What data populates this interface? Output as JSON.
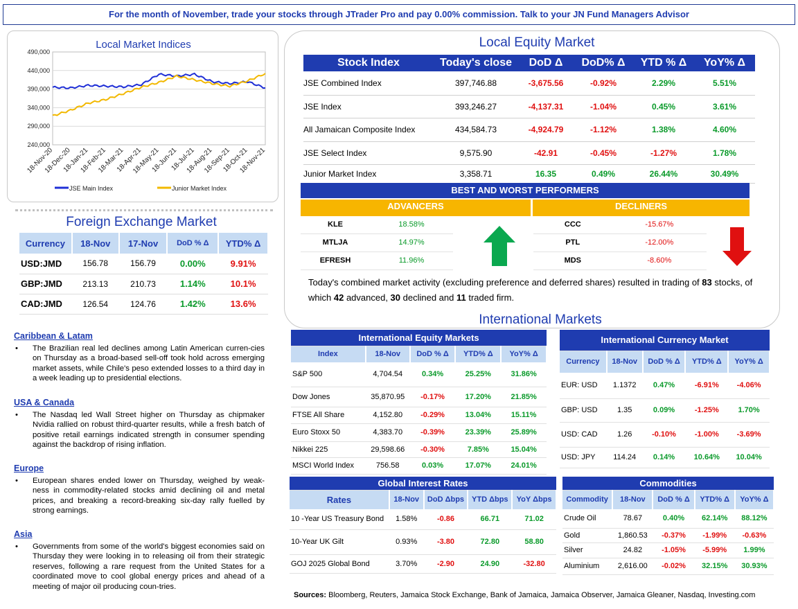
{
  "banner": "For the month of November, trade your stocks through JTrader Pro and pay 0.00% commission. Talk to your JN Fund Managers Advisor",
  "chart_data": {
    "type": "line",
    "title": "Local Market Indices",
    "xlabel": "",
    "ylabel": "",
    "ylim": [
      240000,
      490000
    ],
    "yticks": [
      "490,000",
      "440,000",
      "390,000",
      "340,000",
      "290,000",
      "240,000"
    ],
    "x": [
      "18-Nov-20",
      "18-Dec-20",
      "18-Jan-21",
      "18-Feb-21",
      "18-Mar-21",
      "18-Apr-21",
      "18-May-21",
      "18-Jun-21",
      "18-Jul-21",
      "18-Aug-21",
      "18-Sep-21",
      "18-Oct-21",
      "18-Nov-21"
    ],
    "series": [
      {
        "name": "JSE Main Index",
        "color": "#1f2fd6",
        "values": [
          395000,
          393000,
          400000,
          398000,
          396000,
          402000,
          430000,
          425000,
          430000,
          410000,
          405000,
          410000,
          393000
        ]
      },
      {
        "name": "Junior Market Index",
        "color": "#f2b800",
        "values": [
          318000,
          333000,
          352000,
          362000,
          378000,
          395000,
          408000,
          425000,
          415000,
          405000,
          398000,
          412000,
          432000
        ]
      }
    ],
    "legend": "bottom"
  },
  "fx": {
    "title": "Foreign Exchange Market",
    "headers": [
      "Currency",
      "18-Nov",
      "17-Nov",
      "DoD % Δ",
      "YTD% Δ"
    ],
    "rows": [
      {
        "pair": "USD:JMD",
        "d1": "156.78",
        "d0": "156.79",
        "dod": "0.00%",
        "ytd": "9.91%"
      },
      {
        "pair": "GBP:JMD",
        "d1": "213.13",
        "d0": "210.73",
        "dod": "1.14%",
        "ytd": "10.1%"
      },
      {
        "pair": "CAD:JMD",
        "d1": "126.54",
        "d0": "124.76",
        "dod": "1.42%",
        "ytd": "13.6%"
      }
    ]
  },
  "news": [
    {
      "head": "Caribbean & Latam",
      "bullet": "•",
      "text": "The Brazilian real led declines among Latin American curren-cies on Thursday as a broad-based sell-off took hold across emerging market assets, while Chile's peso extended losses to a third day in a week leading up to presidential elections."
    },
    {
      "head": "USA & Canada",
      "bullet": "•",
      "text": "The Nasdaq led Wall Street higher on Thursday as chipmaker Nvidia rallied on robust third-quarter results, while a fresh batch of positive retail earnings indicated strength in consumer spending against the backdrop of rising inflation."
    },
    {
      "head": "Europe",
      "bullet": "•",
      "text": "European shares ended lower on Thursday, weighed by weak-ness in commodity-related stocks amid declining oil and metal prices, and breaking a record-breaking six-day rally fuelled by strong earnings."
    },
    {
      "head": "Asia",
      "bullet": "•",
      "text": "Governments from some of the world's biggest economies said on Thursday they were looking in to releasing oil from their strategic reserves, following a rare request from the United States for a coordinated move to cool global energy prices and ahead of a meeting of major oil producing coun-tries."
    }
  ],
  "local_equity": {
    "title": "Local Equity Market",
    "headers": [
      "Stock Index",
      "Today's close",
      "DoD  Δ",
      "DoD% Δ",
      "YTD % Δ",
      "YoY% Δ"
    ],
    "rows": [
      {
        "name": "JSE Combined Index",
        "close": "397,746.88",
        "dod": "-3,675.56",
        "dodp": "-0.92%",
        "ytd": "2.29%",
        "yoy": "5.51%"
      },
      {
        "name": "JSE Index",
        "close": "393,246.27",
        "dod": "-4,137.31",
        "dodp": "-1.04%",
        "ytd": "0.45%",
        "yoy": "3.61%"
      },
      {
        "name": "All Jamaican Composite Index",
        "close": "434,584.73",
        "dod": "-4,924.79",
        "dodp": "-1.12%",
        "ytd": "1.38%",
        "yoy": "4.60%"
      },
      {
        "name": "JSE Select Index",
        "close": "9,575.90",
        "dod": "-42.91",
        "dodp": "-0.45%",
        "ytd": "-1.27%",
        "yoy": "1.78%"
      },
      {
        "name": "Junior Market Index",
        "close": "3,358.71",
        "dod": "16.35",
        "dodp": "0.49%",
        "ytd": "26.44%",
        "yoy": "30.49%"
      }
    ]
  },
  "performers": {
    "title": "BEST AND WORST PERFORMERS",
    "advancers_label": "ADVANCERS",
    "decliners_label": "DECLINERS",
    "advancers": [
      {
        "sym": "KLE",
        "val": "18.58%"
      },
      {
        "sym": "MTLJA",
        "val": "14.97%"
      },
      {
        "sym": "EFRESH",
        "val": "11.96%"
      }
    ],
    "decliners": [
      {
        "sym": "CCC",
        "val": "-15.67%"
      },
      {
        "sym": "PTL",
        "val": "-12.00%"
      },
      {
        "sym": "MDS",
        "val": "-8.60%"
      }
    ],
    "colors": {
      "up": "#0aa84f",
      "down": "#e01010"
    }
  },
  "summary": {
    "p1": "Today's combined market activity (excluding preference and deferred shares) resulted in trading of ",
    "n1": "83",
    "p2": " stocks, of which ",
    "n2": "42",
    "p3": " advanced, ",
    "n3": "30",
    "p4": " declined and ",
    "n4": "11",
    "p5": " traded firm."
  },
  "intl_title": "International Markets",
  "intl_equity": {
    "caption": "International Equity Markets",
    "headers": [
      "Index",
      "18-Nov",
      "DoD % Δ",
      "YTD% Δ",
      "YoY% Δ"
    ],
    "rows": [
      {
        "name": "S&P 500",
        "v": "4,704.54",
        "dod": "0.34%",
        "ytd": "25.25%",
        "yoy": "31.86%"
      },
      {
        "name": "Dow Jones",
        "v": "35,870.95",
        "dod": "-0.17%",
        "ytd": "17.20%",
        "yoy": "21.85%"
      },
      {
        "name": "FTSE All Share",
        "v": "4,152.80",
        "dod": "-0.29%",
        "ytd": "13.04%",
        "yoy": "15.11%"
      },
      {
        "name": "Euro Stoxx 50",
        "v": "4,383.70",
        "dod": "-0.39%",
        "ytd": "23.39%",
        "yoy": "25.89%"
      },
      {
        "name": "Nikkei 225",
        "v": "29,598.66",
        "dod": "-0.30%",
        "ytd": "7.85%",
        "yoy": "15.04%"
      },
      {
        "name": "MSCI World Index",
        "v": "756.58",
        "dod": "0.03%",
        "ytd": "17.07%",
        "yoy": "24.01%"
      }
    ]
  },
  "intl_currency": {
    "caption": "International Currency Market",
    "headers": [
      "Currency",
      "18-Nov",
      "DoD % Δ",
      "YTD% Δ",
      "YoY% Δ"
    ],
    "rows": [
      {
        "name": "EUR: USD",
        "v": "1.1372",
        "dod": "0.47%",
        "ytd": "-6.91%",
        "yoy": "-4.06%"
      },
      {
        "name": "GBP: USD",
        "v": "1.35",
        "dod": "0.09%",
        "ytd": "-1.25%",
        "yoy": "1.70%"
      },
      {
        "name": "USD: CAD",
        "v": "1.26",
        "dod": "-0.10%",
        "ytd": "-1.00%",
        "yoy": "-3.69%"
      },
      {
        "name": "USD: JPY",
        "v": "114.24",
        "dod": "0.14%",
        "ytd": "10.64%",
        "yoy": "10.04%"
      }
    ]
  },
  "rates": {
    "caption": "Global Interest Rates",
    "headers": [
      "Rates",
      "18-Nov",
      "DoD Δbps",
      "YTD Δbps",
      "YoY Δbps"
    ],
    "rows": [
      {
        "name": "10 -Year US Treasury Bond",
        "v": "1.58%",
        "dod": "-0.86",
        "ytd": "66.71",
        "yoy": "71.02"
      },
      {
        "name": "10-Year UK Gilt",
        "v": "0.93%",
        "dod": "-3.80",
        "ytd": "72.80",
        "yoy": "58.80"
      },
      {
        "name": "GOJ 2025 Global Bond",
        "v": "3.70%",
        "dod": "-2.90",
        "ytd": "24.90",
        "yoy": "-32.80"
      }
    ]
  },
  "commodities": {
    "caption": "Commodities",
    "headers": [
      "Commodity",
      "18-Nov",
      "DoD % Δ",
      "YTD% Δ",
      "YoY% Δ"
    ],
    "rows": [
      {
        "name": "Crude Oil",
        "v": "78.67",
        "dod": "0.40%",
        "ytd": "62.14%",
        "yoy": "88.12%"
      },
      {
        "name": "Gold",
        "v": "1,860.53",
        "dod": "-0.37%",
        "ytd": "-1.99%",
        "yoy": "-0.63%"
      },
      {
        "name": "Silver",
        "v": "24.82",
        "dod": "-1.05%",
        "ytd": "-5.99%",
        "yoy": "1.99%"
      },
      {
        "name": "Aluminium",
        "v": "2,616.00",
        "dod": "-0.02%",
        "ytd": "32.15%",
        "yoy": "30.93%"
      }
    ]
  },
  "sources": {
    "label": "Sources:",
    "text": " Bloomberg, Reuters, Jamaica Stock Exchange, Bank of Jamaica, Jamaica Observer, Jamaica Gleaner, Nasdaq, Investing.com"
  }
}
